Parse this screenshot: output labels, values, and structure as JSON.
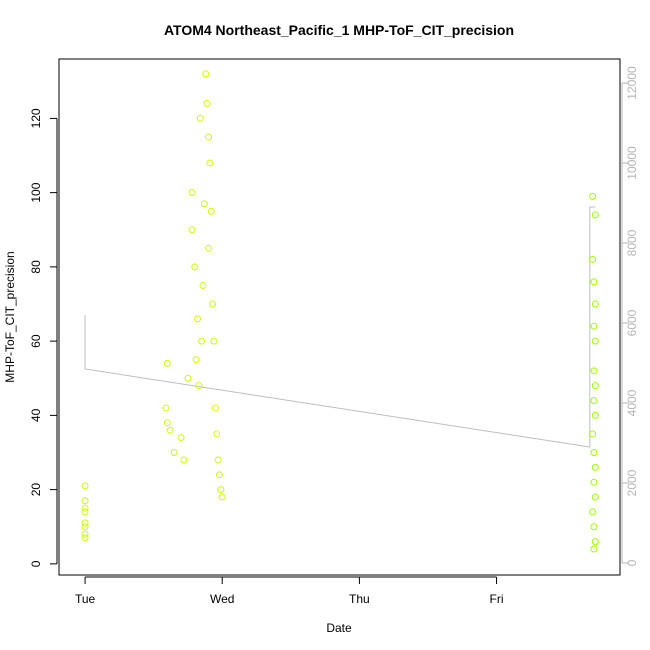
{
  "chart_data": {
    "type": "scatter",
    "title": "ATOM4 Northeast_Pacific_1 MHP-ToF_CIT_precision",
    "xlabel": "Date",
    "ylabel": "MHP-ToF_CIT_precision",
    "x_ticks": [
      {
        "day": 0,
        "label": "Tue"
      },
      {
        "day": 1,
        "label": "Wed"
      },
      {
        "day": 2,
        "label": "Thu"
      },
      {
        "day": 3,
        "label": "Fri"
      }
    ],
    "xlim": [
      -0.19,
      3.9
    ],
    "ylim": [
      -3,
      136
    ],
    "y_ticks": [
      0,
      20,
      40,
      60,
      80,
      100,
      120
    ],
    "y2_ticks": [
      0,
      2000,
      4000,
      6000,
      8000,
      10000,
      12000
    ],
    "y2lim": [
      -300,
      12600
    ],
    "grid": false,
    "colors": {
      "early_points": "#ccff00",
      "late_points": "#99ff00",
      "altitude_line": "#bebebe",
      "right_axis": "#b5b5b5"
    },
    "series": [
      {
        "points_early": [
          [
            0.0,
            21
          ],
          [
            0.0,
            17
          ],
          [
            0.0,
            15
          ],
          [
            0.0,
            14
          ],
          [
            0.0,
            11
          ],
          [
            0.0,
            10
          ],
          [
            0.0,
            8
          ],
          [
            0.0,
            7
          ],
          [
            0.6,
            54
          ],
          [
            0.59,
            42
          ],
          [
            0.6,
            38
          ],
          [
            0.62,
            36
          ],
          [
            0.65,
            30
          ],
          [
            0.7,
            34
          ],
          [
            0.72,
            28
          ],
          [
            0.75,
            50
          ],
          [
            0.78,
            90
          ],
          [
            0.78,
            100
          ],
          [
            0.8,
            80
          ],
          [
            0.81,
            55
          ],
          [
            0.82,
            66
          ],
          [
            0.83,
            48
          ],
          [
            0.84,
            120
          ],
          [
            0.85,
            60
          ],
          [
            0.86,
            75
          ],
          [
            0.87,
            97
          ],
          [
            0.88,
            132
          ],
          [
            0.89,
            124
          ],
          [
            0.9,
            115
          ],
          [
            0.9,
            85
          ],
          [
            0.91,
            108
          ],
          [
            0.92,
            95
          ],
          [
            0.93,
            70
          ],
          [
            0.94,
            60
          ],
          [
            0.95,
            42
          ],
          [
            0.96,
            35
          ],
          [
            0.97,
            28
          ],
          [
            0.98,
            24
          ],
          [
            0.99,
            20
          ],
          [
            1.0,
            18
          ]
        ],
        "points_late": [
          [
            3.7,
            99
          ],
          [
            3.72,
            94
          ],
          [
            3.7,
            82
          ],
          [
            3.71,
            76
          ],
          [
            3.72,
            70
          ],
          [
            3.71,
            64
          ],
          [
            3.72,
            60
          ],
          [
            3.71,
            52
          ],
          [
            3.72,
            48
          ],
          [
            3.71,
            44
          ],
          [
            3.72,
            40
          ],
          [
            3.7,
            35
          ],
          [
            3.71,
            30
          ],
          [
            3.72,
            26
          ],
          [
            3.71,
            22
          ],
          [
            3.72,
            18
          ],
          [
            3.7,
            14
          ],
          [
            3.71,
            10
          ],
          [
            3.72,
            6
          ],
          [
            3.71,
            4
          ]
        ]
      },
      {
        "line": [
          [
            0.0,
            6200
          ],
          [
            0.0,
            4850
          ],
          [
            3.68,
            2900
          ],
          [
            3.68,
            8900
          ],
          [
            3.72,
            8900
          ]
        ]
      }
    ]
  }
}
